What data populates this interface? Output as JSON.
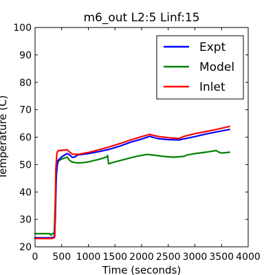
{
  "chart_data": {
    "type": "line",
    "title": "m6_out L2:5 Linf:15",
    "xlabel": "Time (seconds)",
    "ylabel": "Temperature (C)",
    "xlim": [
      0,
      4000
    ],
    "ylim": [
      20,
      100
    ],
    "xticks": [
      0,
      500,
      1000,
      1500,
      2000,
      2500,
      3000,
      3500,
      4000
    ],
    "yticks": [
      20,
      30,
      40,
      50,
      60,
      70,
      80,
      90,
      100
    ],
    "grid": false,
    "legend_position": "top-right",
    "series": [
      {
        "name": "Expt",
        "color": "#0000ff",
        "x": [
          0,
          300,
          340,
          360,
          380,
          400,
          430,
          500,
          600,
          650,
          700,
          750,
          800,
          1000,
          1200,
          1400,
          1600,
          1800,
          2000,
          2150,
          2300,
          2500,
          2700,
          2800,
          3000,
          3200,
          3400,
          3650
        ],
        "y": [
          23.3,
          23.3,
          23.4,
          23.7,
          30,
          47,
          51.5,
          52.8,
          54,
          53.5,
          52.6,
          52.8,
          53.5,
          54.0,
          54.7,
          55.6,
          56.8,
          58.2,
          59.3,
          60.3,
          59.5,
          59.1,
          59.0,
          59.4,
          60.2,
          61.1,
          61.9,
          62.8
        ]
      },
      {
        "name": "Model",
        "color": "#008000",
        "x": [
          0,
          280,
          300,
          320,
          360,
          390,
          420,
          450,
          500,
          600,
          650,
          700,
          800,
          900,
          1000,
          1200,
          1350,
          1360,
          1380,
          1500,
          1700,
          1900,
          2100,
          2200,
          2400,
          2600,
          2800,
          2850,
          3000,
          3200,
          3400,
          3450,
          3500,
          3650
        ],
        "y": [
          24.8,
          24.8,
          24.2,
          24.8,
          25.0,
          43,
          50.5,
          51.5,
          52.0,
          52.7,
          51.5,
          50.9,
          50.6,
          50.7,
          51.0,
          51.9,
          52.8,
          53.3,
          50.3,
          51.0,
          52.0,
          53.0,
          53.7,
          53.5,
          53.0,
          52.7,
          53.0,
          53.5,
          54.0,
          54.5,
          55.1,
          54.5,
          54.2,
          54.5
        ]
      },
      {
        "name": "Inlet",
        "color": "#ff0000",
        "x": [
          0,
          300,
          350,
          370,
          380,
          390,
          410,
          430,
          500,
          600,
          650,
          700,
          800,
          1000,
          1200,
          1400,
          1600,
          1800,
          2000,
          2150,
          2300,
          2500,
          2700,
          2800,
          3000,
          3200,
          3400,
          3650
        ],
        "y": [
          23.0,
          23.0,
          23.2,
          23.6,
          35,
          48.5,
          54.2,
          55.0,
          55.2,
          55.4,
          54.5,
          53.8,
          53.7,
          54.4,
          55.4,
          56.5,
          57.7,
          59.0,
          60.2,
          61.0,
          60.3,
          59.8,
          59.5,
          60.3,
          61.3,
          62.0,
          62.8,
          63.9
        ]
      }
    ]
  }
}
